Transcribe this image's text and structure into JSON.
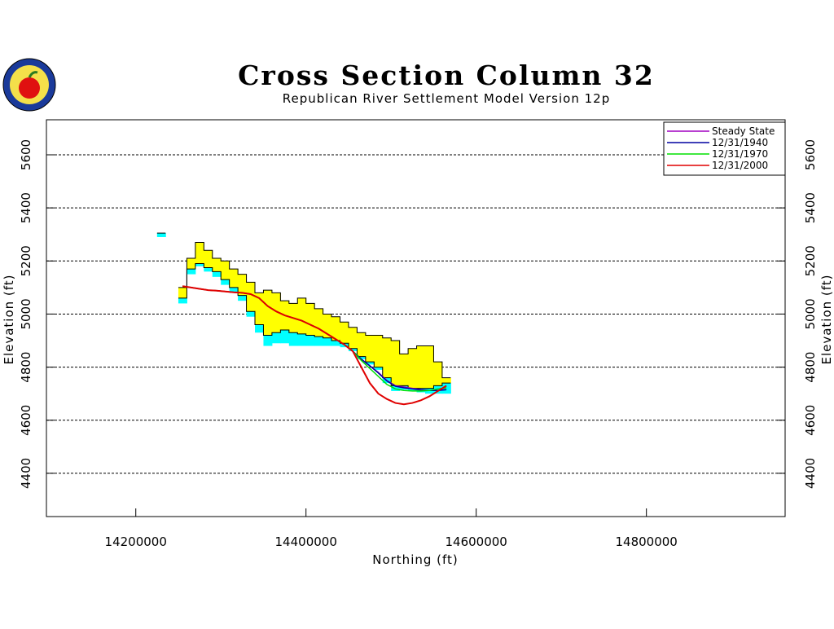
{
  "chart_data": {
    "type": "line",
    "title": "Cross Section Column 32",
    "subtitle": "Republican River Settlement Model Version 12p",
    "x_label": "Northing (ft)",
    "y_label": "Elevation (ft)",
    "xlim": [
      14095000,
      14963000
    ],
    "xticks": [
      14200000,
      14400000,
      14600000,
      14800000
    ],
    "ylim": [
      4237,
      5732
    ],
    "yticks": [
      4400,
      4600,
      4800,
      5000,
      5200,
      5400,
      5600
    ],
    "grid": true,
    "legend": "upper right",
    "x": [
      14255000,
      14265000,
      14275000,
      14285000,
      14295000,
      14305000,
      14315000,
      14325000,
      14335000,
      14345000,
      14355000,
      14365000,
      14375000,
      14385000,
      14395000,
      14405000,
      14415000,
      14425000,
      14435000,
      14445000,
      14455000,
      14465000,
      14475000,
      14485000,
      14495000,
      14505000,
      14515000,
      14525000,
      14535000,
      14545000,
      14555000,
      14565000
    ],
    "areas": [
      {
        "color": "#ffff00",
        "x": [
          14255000,
          14265000,
          14275000,
          14285000,
          14295000,
          14305000,
          14315000,
          14325000,
          14335000,
          14345000,
          14355000,
          14365000,
          14375000,
          14385000,
          14395000,
          14405000,
          14415000,
          14425000,
          14435000,
          14445000,
          14455000,
          14465000,
          14475000,
          14485000,
          14495000,
          14505000,
          14515000,
          14525000,
          14535000,
          14545000,
          14555000,
          14565000
        ],
        "upper": [
          5100,
          5210,
          5270,
          5240,
          5210,
          5200,
          5170,
          5150,
          5120,
          5080,
          5090,
          5080,
          5050,
          5040,
          5060,
          5040,
          5020,
          5000,
          4990,
          4970,
          4950,
          4930,
          4920,
          4920,
          4910,
          4900,
          4850,
          4870,
          4880,
          4880,
          4820,
          4760
        ],
        "lower": [
          5060,
          5170,
          5190,
          5175,
          5160,
          5130,
          5100,
          5070,
          5010,
          4960,
          4920,
          4930,
          4940,
          4930,
          4925,
          4920,
          4915,
          4910,
          4900,
          4890,
          4870,
          4840,
          4820,
          4800,
          4760,
          4730,
          4730,
          4720,
          4720,
          4720,
          4730,
          4740
        ]
      },
      {
        "color": "#00ffff",
        "x": [
          14255000,
          14265000,
          14275000,
          14285000,
          14295000,
          14305000,
          14315000,
          14325000,
          14335000,
          14345000,
          14355000,
          14365000,
          14375000,
          14385000,
          14395000,
          14405000,
          14415000,
          14425000,
          14435000,
          14445000,
          14455000,
          14465000,
          14475000,
          14485000,
          14495000,
          14505000,
          14515000,
          14525000,
          14535000,
          14545000,
          14555000,
          14565000
        ],
        "upper": [
          5060,
          5170,
          5190,
          5175,
          5160,
          5130,
          5100,
          5070,
          5010,
          4960,
          4920,
          4930,
          4940,
          4930,
          4925,
          4920,
          4915,
          4910,
          4900,
          4890,
          4870,
          4840,
          4820,
          4800,
          4760,
          4730,
          4730,
          4720,
          4720,
          4720,
          4730,
          4740
        ],
        "lower": [
          5040,
          5150,
          5180,
          5160,
          5140,
          5110,
          5080,
          5050,
          4990,
          4930,
          4880,
          4890,
          4890,
          4880,
          4880,
          4880,
          4880,
          4880,
          4880,
          4875,
          4860,
          4830,
          4810,
          4790,
          4740,
          4710,
          4715,
          4710,
          4705,
          4700,
          4700,
          4700
        ]
      },
      {
        "color": "#00ffff",
        "x": [
          14230000
        ],
        "upper": [
          5305
        ],
        "lower": [
          5290
        ]
      }
    ],
    "series": [
      {
        "name": "Steady State",
        "color": "#a000c0",
        "values": [
          5105,
          5100,
          5095,
          5090,
          5088,
          5085,
          5082,
          5080,
          5075,
          5060,
          5030,
          5010,
          4995,
          4985,
          4975,
          4960,
          4945,
          4925,
          4905,
          4885,
          4860,
          4830,
          4805,
          4780,
          4750,
          4730,
          4725,
          4720,
          4715,
          4712,
          4712,
          4715
        ]
      },
      {
        "name": "12/31/1940",
        "color": "#0000a0",
        "values": [
          5105,
          5100,
          5095,
          5090,
          5088,
          5085,
          5082,
          5080,
          5075,
          5060,
          5030,
          5010,
          4995,
          4985,
          4975,
          4960,
          4945,
          4925,
          4905,
          4885,
          4860,
          4830,
          4805,
          4778,
          4748,
          4728,
          4722,
          4718,
          4714,
          4712,
          4712,
          4715
        ]
      },
      {
        "name": "12/31/1970",
        "color": "#00e000",
        "values": [
          5105,
          5100,
          5095,
          5090,
          5088,
          5085,
          5082,
          5080,
          5075,
          5060,
          5030,
          5010,
          4995,
          4985,
          4975,
          4960,
          4945,
          4925,
          4905,
          4885,
          4860,
          4825,
          4795,
          4765,
          4735,
          4718,
          4712,
          4710,
          4710,
          4712,
          4718,
          4722
        ]
      },
      {
        "name": "12/31/2000",
        "color": "#e00000",
        "values": [
          5105,
          5100,
          5095,
          5090,
          5088,
          5085,
          5082,
          5080,
          5075,
          5060,
          5030,
          5010,
          4995,
          4985,
          4975,
          4960,
          4945,
          4925,
          4905,
          4885,
          4860,
          4800,
          4740,
          4700,
          4680,
          4665,
          4660,
          4665,
          4675,
          4690,
          4710,
          4730
        ]
      }
    ]
  }
}
